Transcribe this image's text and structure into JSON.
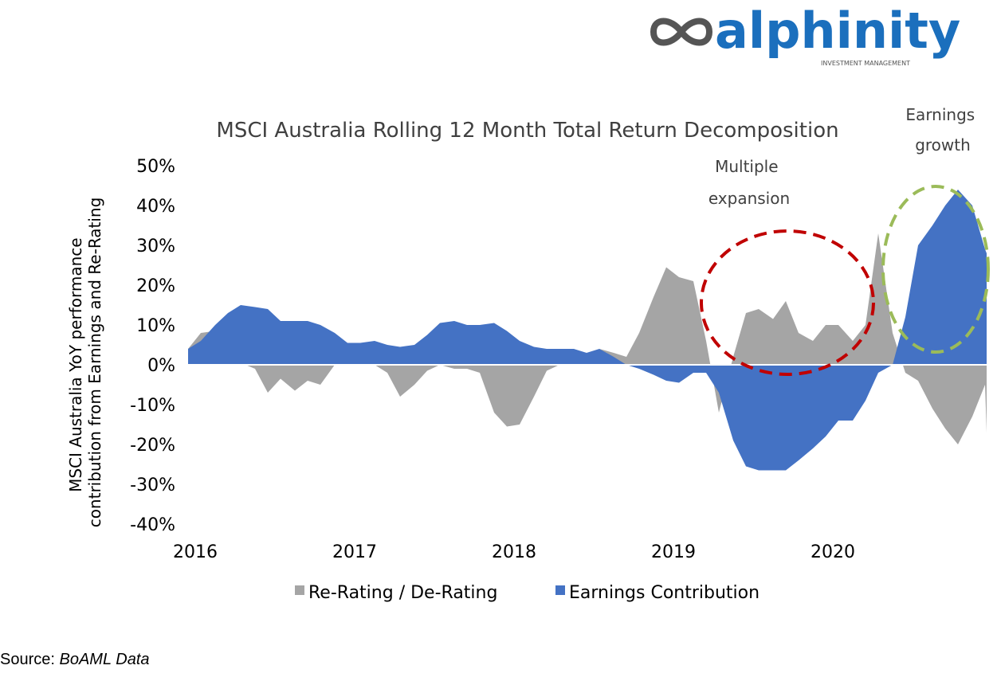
{
  "logo": {
    "wordmark": "alphinity",
    "tagline": "INVESTMENT MANAGEMENT",
    "icon": "infinity-icon",
    "color": "#1b6fbd",
    "icon_color": "#555555"
  },
  "annotations": {
    "multiple_expansion": "Multiple expansion",
    "earnings_growth": "Earnings growth",
    "red_circle_color": "#c00000",
    "green_circle_color": "#9bbb59"
  },
  "source": {
    "label": "Source:",
    "value": "BoAML Data"
  },
  "chart_data": {
    "type": "area",
    "title": "MSCI Australia Rolling 12 Month Total Return Decomposition",
    "ylabel": "MSCI Australia YoY performance contribution from Earnings and Re-Rating",
    "xlabel": "",
    "ylim": [
      -40,
      50
    ],
    "yticks": [
      "50%",
      "40%",
      "30%",
      "20%",
      "10%",
      "0%",
      "-10%",
      "-20%",
      "-30%",
      "-40%"
    ],
    "xticks": [
      "2016",
      "2017",
      "2018",
      "2019",
      "2020"
    ],
    "xlim": [
      2016.0,
      2021.0
    ],
    "grid": false,
    "legend": "bottom",
    "series": [
      {
        "name": "Re-Rating / De-Rating",
        "color": "#a5a5a5",
        "points": [
          [
            2016.0,
            4
          ],
          [
            2016.08,
            8
          ],
          [
            2016.17,
            8.5
          ],
          [
            2016.25,
            3
          ],
          [
            2016.33,
            0.5
          ],
          [
            2016.42,
            -1
          ],
          [
            2016.5,
            -7
          ],
          [
            2016.58,
            -3.5
          ],
          [
            2016.67,
            -6.5
          ],
          [
            2016.75,
            -4
          ],
          [
            2016.83,
            -5
          ],
          [
            2016.92,
            0
          ],
          [
            2017.0,
            0
          ],
          [
            2017.17,
            0
          ],
          [
            2017.25,
            -2
          ],
          [
            2017.33,
            -8
          ],
          [
            2017.42,
            -5
          ],
          [
            2017.5,
            -1.5
          ],
          [
            2017.58,
            0
          ],
          [
            2017.67,
            -1
          ],
          [
            2017.75,
            -1
          ],
          [
            2017.83,
            -2
          ],
          [
            2017.92,
            -12
          ],
          [
            2018.0,
            -15.5
          ],
          [
            2018.08,
            -15
          ],
          [
            2018.17,
            -8
          ],
          [
            2018.25,
            -1.5
          ],
          [
            2018.33,
            0
          ],
          [
            2018.5,
            0
          ],
          [
            2018.58,
            4
          ],
          [
            2018.67,
            3
          ],
          [
            2018.75,
            2
          ],
          [
            2018.83,
            8
          ],
          [
            2018.92,
            17
          ],
          [
            2019.0,
            24.5
          ],
          [
            2019.08,
            22
          ],
          [
            2019.17,
            21
          ],
          [
            2019.25,
            6
          ],
          [
            2019.33,
            -12
          ],
          [
            2019.42,
            2
          ],
          [
            2019.5,
            13
          ],
          [
            2019.58,
            14
          ],
          [
            2019.67,
            11.5
          ],
          [
            2019.75,
            16
          ],
          [
            2019.83,
            8
          ],
          [
            2019.92,
            6
          ],
          [
            2020.0,
            10
          ],
          [
            2020.08,
            10
          ],
          [
            2020.17,
            6
          ],
          [
            2020.25,
            10
          ],
          [
            2020.33,
            33
          ],
          [
            2020.42,
            8
          ],
          [
            2020.5,
            -2
          ],
          [
            2020.58,
            -4
          ],
          [
            2020.67,
            -11
          ],
          [
            2020.75,
            -16
          ],
          [
            2020.83,
            -20
          ],
          [
            2020.92,
            -13
          ],
          [
            2021.0,
            -5
          ],
          [
            2021.08,
            -17
          ]
        ]
      },
      {
        "name": "Earnings Contribution",
        "color": "#4472c4",
        "points": [
          [
            2016.0,
            4
          ],
          [
            2016.08,
            6
          ],
          [
            2016.17,
            10
          ],
          [
            2016.25,
            13
          ],
          [
            2016.33,
            15
          ],
          [
            2016.42,
            14.5
          ],
          [
            2016.5,
            14
          ],
          [
            2016.58,
            11
          ],
          [
            2016.67,
            11
          ],
          [
            2016.75,
            11
          ],
          [
            2016.83,
            10
          ],
          [
            2016.92,
            8
          ],
          [
            2017.0,
            5.5
          ],
          [
            2017.08,
            5.5
          ],
          [
            2017.17,
            6
          ],
          [
            2017.25,
            5
          ],
          [
            2017.33,
            4.5
          ],
          [
            2017.42,
            5
          ],
          [
            2017.5,
            7.5
          ],
          [
            2017.58,
            10.5
          ],
          [
            2017.67,
            11
          ],
          [
            2017.75,
            10
          ],
          [
            2017.83,
            10
          ],
          [
            2017.92,
            10.5
          ],
          [
            2018.0,
            8.5
          ],
          [
            2018.08,
            6
          ],
          [
            2018.17,
            4.5
          ],
          [
            2018.25,
            4
          ],
          [
            2018.33,
            4
          ],
          [
            2018.42,
            4
          ],
          [
            2018.5,
            3
          ],
          [
            2018.58,
            4
          ],
          [
            2018.67,
            2
          ],
          [
            2018.75,
            0
          ],
          [
            2018.83,
            -1
          ],
          [
            2018.92,
            -2.5
          ],
          [
            2019.0,
            -4
          ],
          [
            2019.08,
            -4.5
          ],
          [
            2019.17,
            -2
          ],
          [
            2019.25,
            -2
          ],
          [
            2019.33,
            -7
          ],
          [
            2019.42,
            -19
          ],
          [
            2019.5,
            -25.5
          ],
          [
            2019.58,
            -26.5
          ],
          [
            2019.67,
            -26.5
          ],
          [
            2019.75,
            -26.5
          ],
          [
            2019.83,
            -24
          ],
          [
            2019.92,
            -21
          ],
          [
            2020.0,
            -18
          ],
          [
            2020.08,
            -14
          ],
          [
            2020.17,
            -14
          ],
          [
            2020.25,
            -9
          ],
          [
            2020.33,
            -2
          ],
          [
            2020.42,
            0
          ],
          [
            2020.5,
            12
          ],
          [
            2020.58,
            30
          ],
          [
            2020.67,
            35
          ],
          [
            2020.75,
            40
          ],
          [
            2020.83,
            44
          ],
          [
            2020.92,
            40
          ],
          [
            2021.0,
            29
          ],
          [
            2021.08,
            28
          ]
        ]
      }
    ]
  }
}
